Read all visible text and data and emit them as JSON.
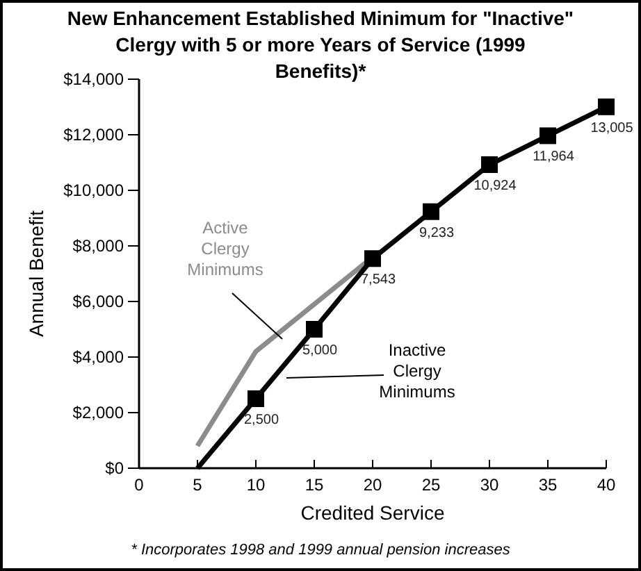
{
  "chart_data": {
    "type": "line",
    "title": "New Enhancement Established Minimum for \"Inactive\" Clergy with 5 or more Years of Service (1999 Benefits)*",
    "xlabel": "Credited Service",
    "ylabel": "Annual Benefit",
    "annotations": [
      "* Incorporates 1998 and 1999 annual pension increases"
    ],
    "xlim": [
      0,
      40
    ],
    "xticks": [
      0,
      5,
      10,
      15,
      20,
      25,
      30,
      35,
      40
    ],
    "ylim": [
      0,
      14000
    ],
    "yticks": [
      {
        "value": 0,
        "label": "$0"
      },
      {
        "value": 2000,
        "label": "$2,000"
      },
      {
        "value": 4000,
        "label": "$4,000"
      },
      {
        "value": 6000,
        "label": "$6,000"
      },
      {
        "value": 8000,
        "label": "$8,000"
      },
      {
        "value": 10000,
        "label": "$10,000"
      },
      {
        "value": 12000,
        "label": "$12,000"
      },
      {
        "value": 14000,
        "label": "$14,000"
      }
    ],
    "grid": false,
    "series": [
      {
        "name": "Active Clergy Minimums",
        "color": "#8c8c8c",
        "x": [
          5,
          10,
          20
        ],
        "values": [
          800,
          4200,
          7600
        ],
        "marker": "none"
      },
      {
        "name": "Inactive Clergy Minimums",
        "color": "#000000",
        "x": [
          5,
          10,
          15,
          20,
          25,
          30,
          35,
          40
        ],
        "values": [
          0,
          2500,
          5000,
          7543,
          9233,
          10924,
          11964,
          13005
        ],
        "marker": "square",
        "value_labels": [
          null,
          "2,500",
          "5,000",
          "7,543",
          "9,233",
          "10,924",
          "11,964",
          "13,005"
        ]
      }
    ]
  }
}
